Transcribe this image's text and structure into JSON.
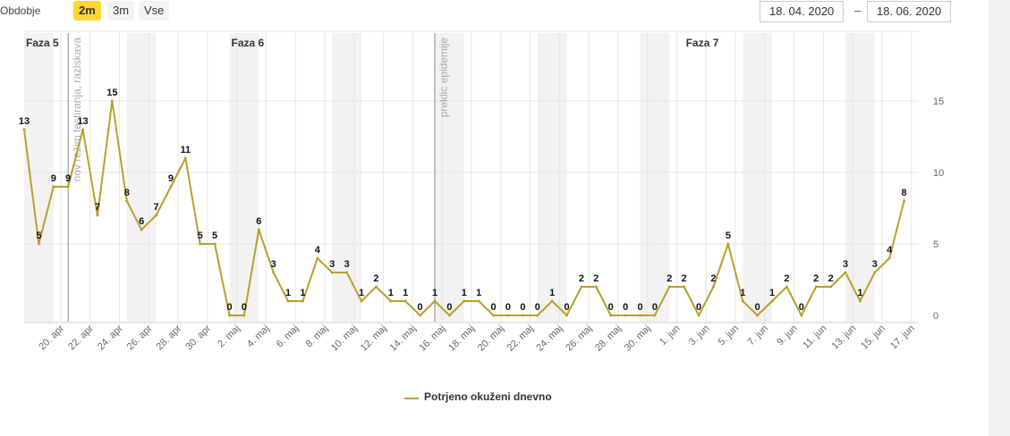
{
  "toolbar": {
    "period_label": "Obdobje",
    "periods": [
      "2m",
      "3m",
      "Vse"
    ],
    "active_period": "2m",
    "date_from": "18. 04. 2020",
    "date_separator": "–",
    "date_to": "18. 06. 2020"
  },
  "colors": {
    "line": "#b99f2c",
    "band": "#f2f2f2",
    "grid": "#e6e6e6",
    "active_button": "#ffd633"
  },
  "chart_data": {
    "type": "line",
    "series": [
      {
        "name": "Potrjeno okuženi dnevno",
        "values": [
          13,
          5,
          9,
          9,
          13,
          7,
          15,
          8,
          6,
          7,
          9,
          11,
          5,
          5,
          0,
          0,
          6,
          3,
          1,
          1,
          4,
          3,
          3,
          1,
          2,
          1,
          1,
          0,
          1,
          0,
          1,
          1,
          0,
          0,
          0,
          0,
          1,
          0,
          2,
          2,
          0,
          0,
          0,
          0,
          2,
          2,
          0,
          2,
          5,
          1,
          0,
          1,
          2,
          0,
          2,
          2,
          3,
          1,
          3,
          4,
          8
        ]
      }
    ],
    "x_tick_labels": [
      "20. apr",
      "22. apr",
      "24. apr",
      "26. apr",
      "28. apr",
      "30. apr",
      "2. maj",
      "4. maj",
      "6. maj",
      "8. maj",
      "10. maj",
      "12. maj",
      "14. maj",
      "16. maj",
      "18. maj",
      "20. maj",
      "22. maj",
      "24. maj",
      "26. maj",
      "28. maj",
      "30. maj",
      "1. jun",
      "3. jun",
      "5. jun",
      "7. jun",
      "9. jun",
      "11. jun",
      "13. jun",
      "15. jun",
      "17. jun"
    ],
    "y_ticks": [
      0,
      5,
      10,
      15
    ],
    "ylim": [
      0,
      20
    ],
    "y_axis_side": "right",
    "weekend_bands": true,
    "phases": [
      {
        "label": "Faza 5",
        "index": 0
      },
      {
        "label": "Faza 6",
        "index": 14
      },
      {
        "label": "Faza 7",
        "index": 45
      }
    ],
    "markers": [
      {
        "label": "nov režim testiranja, raziskava",
        "index": 2.5
      },
      {
        "label": "preklic epidemije",
        "index": 27.5
      }
    ],
    "legend": {
      "label": "Potrjeno okuženi dnevno",
      "position": "bottom-center"
    },
    "grid": true
  }
}
